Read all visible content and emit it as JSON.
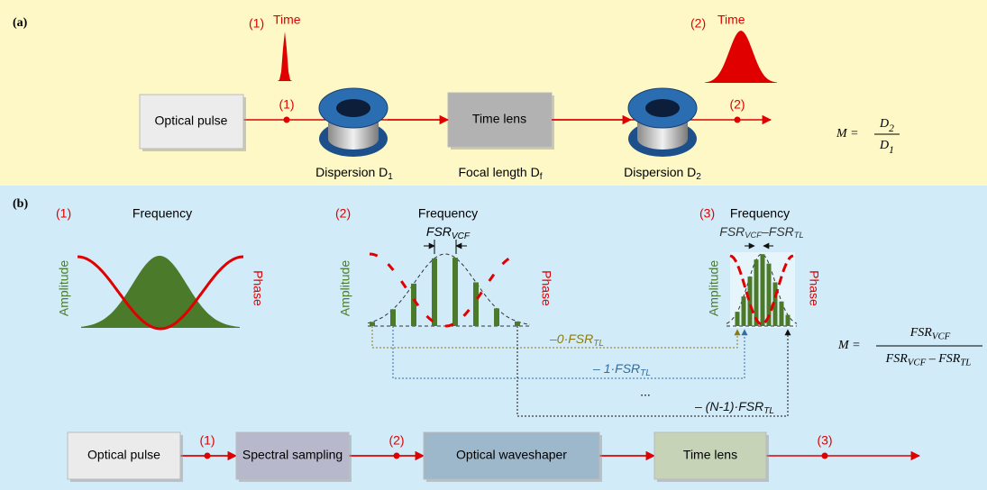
{
  "panel_a": {
    "label": "(a)",
    "pulse_in": {
      "marker": "(1)",
      "axis": "Time"
    },
    "pulse_out": {
      "marker": "(2)",
      "axis": "Time"
    },
    "blocks": {
      "source": "Optical pulse",
      "lens": "Time lens"
    },
    "points": [
      "(1)",
      "(2)"
    ],
    "captions": [
      {
        "text": "Dispersion D",
        "sub": "1"
      },
      {
        "text": "Focal length D",
        "sub": "f"
      },
      {
        "text": "Dispersion D",
        "sub": "2"
      }
    ],
    "formula": {
      "lhs": "M =",
      "num": {
        "text": "D",
        "sub": "2"
      },
      "den": {
        "text": "D",
        "sub": "1"
      }
    }
  },
  "panel_b": {
    "label": "(b)",
    "plots": [
      {
        "marker": "(1)",
        "axis": "Frequency",
        "amplitude": "Amplitude",
        "phase": "Phase"
      },
      {
        "marker": "(2)",
        "axis": "Frequency",
        "amplitude": "Amplitude",
        "phase": "Phase",
        "spacing": [
          {
            "text": "FSR",
            "sub": "VCF"
          }
        ]
      },
      {
        "marker": "(3)",
        "axis": "Frequency",
        "amplitude": "Amplitude",
        "phase": "Phase",
        "spacing": [
          {
            "text": "FSR",
            "sub": "VCF"
          },
          {
            "text": "–FSR",
            "sub": "TL"
          }
        ]
      }
    ],
    "shifts": [
      [
        {
          "text": "–0·FSR",
          "sub": "TL"
        }
      ],
      [
        {
          "text": "– 1·FSR",
          "sub": "TL"
        }
      ],
      [
        {
          "text": "– (N-1)·FSR",
          "sub": "TL"
        }
      ]
    ],
    "ellipsis": "...",
    "formula": {
      "lhs": "M =",
      "num": [
        {
          "text": "FSR",
          "sub": "VCF"
        }
      ],
      "den": [
        {
          "text": "FSR",
          "sub": "VCF"
        },
        {
          "text": " – FSR",
          "sub": "TL"
        }
      ]
    },
    "chain": {
      "blocks": [
        "Optical pulse",
        "Spectral sampling",
        "Optical waveshaper",
        "Time lens"
      ],
      "points": [
        "(1)",
        "(2)",
        "(3)"
      ]
    }
  }
}
